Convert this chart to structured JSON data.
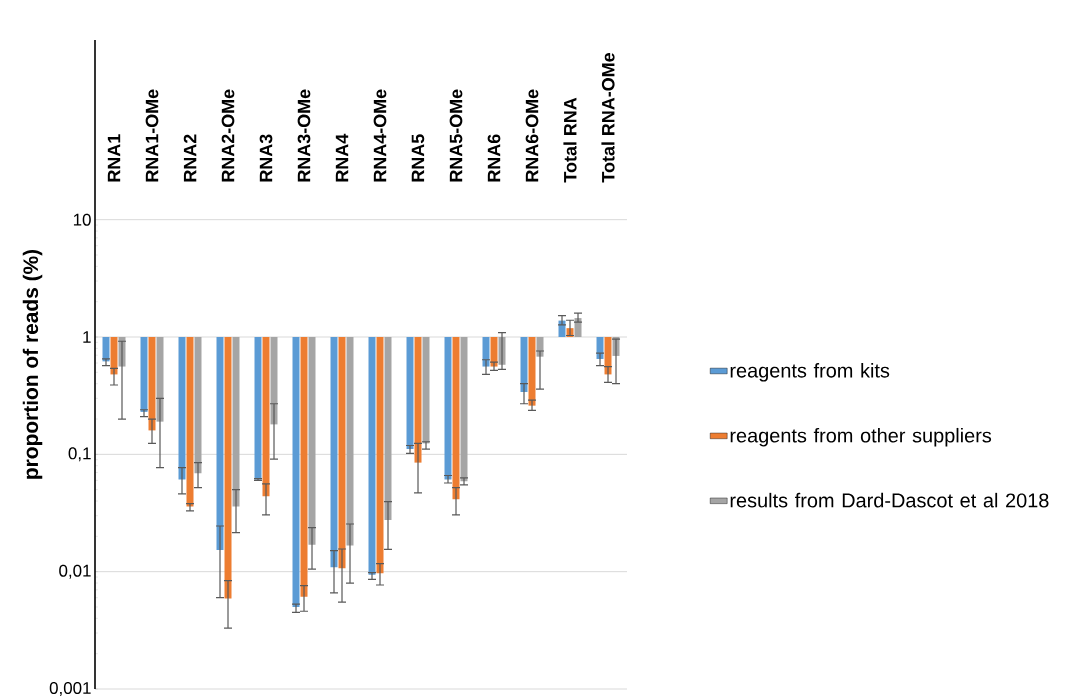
{
  "chart_data": {
    "type": "bar",
    "ylabel": "proportion of reads (%)",
    "categories": [
      "RNA1",
      "RNA1-OMe",
      "RNA2",
      "RNA2-OMe",
      "RNA3",
      "RNA3-OMe",
      "RNA4",
      "RNA4-OMe",
      "RNA5",
      "RNA5-OMe",
      "RNA6",
      "RNA6-OMe",
      "Total RNA",
      "Total RNA-OMe"
    ],
    "series": [
      {
        "name": "reagents from kits",
        "color": "#5b9bd5",
        "base": [
          1,
          1,
          1,
          1,
          1,
          1,
          1,
          1,
          1,
          1,
          1,
          1,
          1,
          1
        ],
        "values": [
          -0.38,
          -0.77,
          -0.939,
          -0.9847,
          -0.939,
          -0.995,
          -0.9891,
          -0.9906,
          -0.889,
          -0.939,
          -0.44,
          -0.66,
          0.38,
          -0.35
        ],
        "errors": [
          [
            0.57,
            0.65
          ],
          [
            0.21,
            0.24
          ],
          [
            0.046,
            0.077
          ],
          [
            0.006,
            0.0245
          ],
          [
            0.06,
            0.062
          ],
          [
            0.0045,
            0.0053
          ],
          [
            0.0066,
            0.0151
          ],
          [
            0.0086,
            0.0098
          ],
          [
            0.102,
            0.119
          ],
          [
            0.057,
            0.066
          ],
          [
            0.48,
            0.64
          ],
          [
            0.27,
            0.4
          ],
          [
            1.27,
            1.52
          ],
          [
            0.57,
            0.73
          ]
        ]
      },
      {
        "name": "reagents from other suppliers",
        "color": "#ed7d31",
        "base": [
          1,
          1,
          1,
          1,
          1,
          1,
          1,
          1,
          1,
          1,
          1,
          1,
          1,
          1
        ],
        "values": [
          -0.52,
          -0.84,
          -0.964,
          -0.9941,
          -0.956,
          -0.9939,
          -0.9893,
          -0.9903,
          -0.915,
          -0.9585,
          -0.44,
          -0.74,
          0.19,
          -0.52
        ],
        "errors": [
          [
            0.39,
            0.54
          ],
          [
            0.124,
            0.2
          ],
          [
            0.033,
            0.038
          ],
          [
            0.0033,
            0.0084
          ],
          [
            0.0305,
            0.056
          ],
          [
            0.0046,
            0.0076
          ],
          [
            0.0055,
            0.0156
          ],
          [
            0.0077,
            0.0117
          ],
          [
            0.047,
            0.124
          ],
          [
            0.0305,
            0.052
          ],
          [
            0.52,
            0.61
          ],
          [
            0.237,
            0.29
          ],
          [
            1.03,
            1.39
          ],
          [
            0.41,
            0.56
          ]
        ]
      },
      {
        "name": "results from Dard-Dascot et al 2018",
        "color": "#a5a5a5",
        "base": [
          1,
          1,
          1,
          1,
          1,
          1,
          1,
          1,
          1,
          1,
          1,
          1,
          1,
          1
        ],
        "values": [
          -0.44,
          -0.81,
          -0.931,
          -0.964,
          -0.82,
          -0.983,
          -0.9833,
          -0.9724,
          -0.876,
          -0.941,
          -0.42,
          -0.32,
          0.45,
          -0.31
        ],
        "errors": [
          [
            0.2,
            0.92
          ],
          [
            0.077,
            0.3
          ],
          [
            0.052,
            0.085
          ],
          [
            0.0215,
            0.05
          ],
          [
            0.091,
            0.27
          ],
          [
            0.0105,
            0.0237
          ],
          [
            0.008,
            0.0255
          ],
          [
            0.0155,
            0.0396
          ],
          [
            0.111,
            0.128
          ],
          [
            0.055,
            0.063
          ],
          [
            0.53,
            1.09
          ],
          [
            0.36,
            0.76
          ],
          [
            1.34,
            1.6
          ],
          [
            0.4,
            0.96
          ]
        ]
      }
    ],
    "log": true,
    "ylim": [
      0.001,
      340
    ],
    "yticks": [
      {
        "value": 0.001,
        "label": "0,001"
      },
      {
        "value": 0.01,
        "label": "0,01"
      },
      {
        "value": 0.1,
        "label": "0,1"
      },
      {
        "value": 1,
        "label": "1"
      },
      {
        "value": 10,
        "label": "10"
      }
    ],
    "grid": "y",
    "legend": "right"
  }
}
